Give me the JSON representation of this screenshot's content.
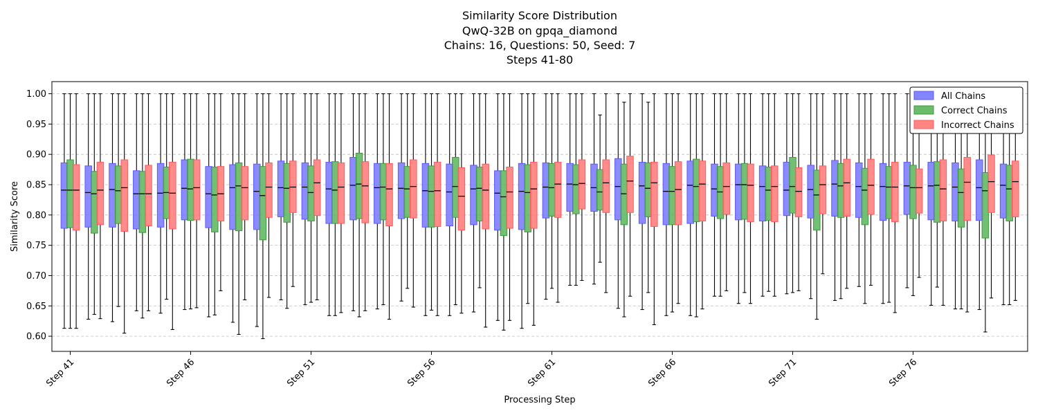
{
  "chart_data": {
    "type": "box",
    "title_lines": [
      "Similarity Score Distribution",
      "QwQ-32B on gpqa_diamond",
      "Chains: 16, Questions: 50, Seed: 7",
      "Steps 41-80"
    ],
    "xlabel": "Processing Step",
    "ylabel": "Similarity Score",
    "ylim": [
      0.575,
      1.02
    ],
    "yticks": [
      0.6,
      0.65,
      0.7,
      0.75,
      0.8,
      0.85,
      0.9,
      0.95,
      1.0
    ],
    "ytick_labels": [
      "0.60",
      "0.65",
      "0.70",
      "0.75",
      "0.80",
      "0.85",
      "0.90",
      "0.95",
      "1.00"
    ],
    "grid": "y-dashed",
    "legend_position": "top-right",
    "steps": [
      41,
      42,
      43,
      44,
      45,
      46,
      47,
      48,
      49,
      50,
      51,
      52,
      53,
      54,
      55,
      56,
      57,
      58,
      59,
      60,
      61,
      62,
      63,
      64,
      65,
      66,
      67,
      68,
      69,
      70,
      71,
      72,
      73,
      74,
      75,
      76,
      77,
      78,
      79,
      80
    ],
    "xtick_steps": [
      41,
      46,
      51,
      56,
      61,
      66,
      71,
      76
    ],
    "xtick_labels": [
      "Step 41",
      "Step 46",
      "Step 51",
      "Step 56",
      "Step 61",
      "Step 66",
      "Step 71",
      "Step 76"
    ],
    "series": [
      {
        "name": "All Chains",
        "color": "#5a5aff",
        "fill": "#7777ff",
        "boxes": [
          [
            0.613,
            0.778,
            0.841,
            0.886,
            1.0
          ],
          [
            0.628,
            0.78,
            0.837,
            0.881,
            1.0
          ],
          [
            0.624,
            0.78,
            0.842,
            0.885,
            1.0
          ],
          [
            0.642,
            0.777,
            0.835,
            0.873,
            1.0
          ],
          [
            0.638,
            0.78,
            0.836,
            0.885,
            1.0
          ],
          [
            0.644,
            0.792,
            0.844,
            0.891,
            1.0
          ],
          [
            0.632,
            0.779,
            0.835,
            0.88,
            1.0
          ],
          [
            0.623,
            0.776,
            0.845,
            0.883,
            1.0
          ],
          [
            0.616,
            0.776,
            0.839,
            0.884,
            1.0
          ],
          [
            0.66,
            0.797,
            0.845,
            0.889,
            1.0
          ],
          [
            0.652,
            0.793,
            0.846,
            0.886,
            1.0
          ],
          [
            0.634,
            0.786,
            0.843,
            0.887,
            1.0
          ],
          [
            0.642,
            0.792,
            0.849,
            0.895,
            1.0
          ],
          [
            0.645,
            0.786,
            0.845,
            0.885,
            1.0
          ],
          [
            0.658,
            0.794,
            0.844,
            0.886,
            1.0
          ],
          [
            0.634,
            0.78,
            0.84,
            0.885,
            1.0
          ],
          [
            0.634,
            0.782,
            0.838,
            0.884,
            1.0
          ],
          [
            0.64,
            0.784,
            0.843,
            0.882,
            1.0
          ],
          [
            0.626,
            0.775,
            0.836,
            0.873,
            1.0
          ],
          [
            0.613,
            0.776,
            0.839,
            0.885,
            1.0
          ],
          [
            0.661,
            0.795,
            0.846,
            0.886,
            1.0
          ],
          [
            0.684,
            0.806,
            0.851,
            0.885,
            1.0
          ],
          [
            0.686,
            0.806,
            0.845,
            0.884,
            1.0
          ],
          [
            0.646,
            0.792,
            0.847,
            0.893,
            1.0
          ],
          [
            0.644,
            0.786,
            0.848,
            0.887,
            1.0
          ],
          [
            0.634,
            0.784,
            0.839,
            0.885,
            1.0
          ],
          [
            0.634,
            0.786,
            0.849,
            0.889,
            1.0
          ],
          [
            0.666,
            0.798,
            0.843,
            0.884,
            1.0
          ],
          [
            0.654,
            0.792,
            0.85,
            0.884,
            1.0
          ],
          [
            0.666,
            0.79,
            0.847,
            0.881,
            1.0
          ],
          [
            0.67,
            0.799,
            0.841,
            0.887,
            1.0
          ],
          [
            0.662,
            0.795,
            0.842,
            0.882,
            1.0
          ],
          [
            0.659,
            0.798,
            0.851,
            0.89,
            1.0
          ],
          [
            0.682,
            0.796,
            0.847,
            0.886,
            1.0
          ],
          [
            0.654,
            0.791,
            0.847,
            0.885,
            1.0
          ],
          [
            0.68,
            0.801,
            0.848,
            0.887,
            1.0
          ],
          [
            0.651,
            0.792,
            0.848,
            0.887,
            1.0
          ],
          [
            0.645,
            0.79,
            0.846,
            0.886,
            1.0
          ],
          [
            0.644,
            0.791,
            0.845,
            0.891,
            1.0
          ],
          [
            0.652,
            0.795,
            0.849,
            0.884,
            1.0
          ]
        ]
      },
      {
        "name": "Correct Chains",
        "color": "#3d9a3d",
        "fill": "#5ab45a",
        "boxes": [
          [
            0.613,
            0.779,
            0.841,
            0.891,
            1.0
          ],
          [
            0.636,
            0.77,
            0.835,
            0.872,
            1.0
          ],
          [
            0.649,
            0.786,
            0.84,
            0.881,
            1.0
          ],
          [
            0.63,
            0.771,
            0.835,
            0.872,
            1.0
          ],
          [
            0.661,
            0.794,
            0.837,
            0.879,
            1.0
          ],
          [
            0.645,
            0.791,
            0.843,
            0.892,
            1.0
          ],
          [
            0.635,
            0.772,
            0.833,
            0.879,
            1.0
          ],
          [
            0.603,
            0.774,
            0.848,
            0.886,
            1.0
          ],
          [
            0.596,
            0.759,
            0.832,
            0.88,
            1.0
          ],
          [
            0.646,
            0.788,
            0.844,
            0.885,
            1.0
          ],
          [
            0.656,
            0.79,
            0.837,
            0.881,
            1.0
          ],
          [
            0.634,
            0.786,
            0.841,
            0.888,
            1.0
          ],
          [
            0.632,
            0.794,
            0.851,
            0.902,
            1.0
          ],
          [
            0.652,
            0.792,
            0.846,
            0.885,
            1.0
          ],
          [
            0.679,
            0.796,
            0.843,
            0.88,
            1.0
          ],
          [
            0.643,
            0.78,
            0.839,
            0.881,
            1.0
          ],
          [
            0.652,
            0.796,
            0.847,
            0.895,
            1.0
          ],
          [
            0.68,
            0.79,
            0.844,
            0.879,
            1.0
          ],
          [
            0.61,
            0.766,
            0.83,
            0.873,
            1.0
          ],
          [
            0.654,
            0.772,
            0.837,
            0.883,
            1.0
          ],
          [
            0.679,
            0.798,
            0.845,
            0.885,
            1.0
          ],
          [
            0.684,
            0.802,
            0.85,
            0.883,
            1.0
          ],
          [
            0.722,
            0.808,
            0.838,
            0.875,
            0.965
          ],
          [
            0.632,
            0.784,
            0.835,
            0.884,
            0.986
          ],
          [
            0.672,
            0.797,
            0.844,
            0.886,
            0.986
          ],
          [
            0.64,
            0.784,
            0.839,
            0.88,
            1.0
          ],
          [
            0.632,
            0.789,
            0.847,
            0.892,
            1.0
          ],
          [
            0.666,
            0.794,
            0.838,
            0.88,
            1.0
          ],
          [
            0.672,
            0.793,
            0.85,
            0.885,
            1.0
          ],
          [
            0.674,
            0.791,
            0.841,
            0.879,
            1.0
          ],
          [
            0.672,
            0.803,
            0.847,
            0.895,
            1.0
          ],
          [
            0.628,
            0.775,
            0.833,
            0.874,
            1.0
          ],
          [
            0.662,
            0.796,
            0.848,
            0.885,
            1.0
          ],
          [
            0.654,
            0.784,
            0.841,
            0.877,
            1.0
          ],
          [
            0.656,
            0.794,
            0.846,
            0.88,
            1.0
          ],
          [
            0.667,
            0.794,
            0.845,
            0.882,
            1.0
          ],
          [
            0.681,
            0.788,
            0.849,
            0.888,
            1.0
          ],
          [
            0.645,
            0.78,
            0.837,
            0.876,
            1.0
          ],
          [
            0.607,
            0.762,
            0.84,
            0.87,
            1.0
          ],
          [
            0.652,
            0.79,
            0.843,
            0.882,
            1.0
          ]
        ]
      },
      {
        "name": "Incorrect Chains",
        "color": "#ff5a5a",
        "fill": "#ff7777",
        "boxes": [
          [
            0.613,
            0.775,
            0.841,
            0.883,
            1.0
          ],
          [
            0.629,
            0.784,
            0.841,
            0.887,
            1.0
          ],
          [
            0.605,
            0.773,
            0.845,
            0.891,
            1.0
          ],
          [
            0.642,
            0.782,
            0.835,
            0.882,
            1.0
          ],
          [
            0.611,
            0.777,
            0.836,
            0.887,
            1.0
          ],
          [
            0.647,
            0.792,
            0.845,
            0.891,
            1.0
          ],
          [
            0.675,
            0.79,
            0.835,
            0.88,
            1.0
          ],
          [
            0.66,
            0.792,
            0.845,
            0.88,
            1.0
          ],
          [
            0.664,
            0.796,
            0.846,
            0.886,
            1.0
          ],
          [
            0.682,
            0.804,
            0.846,
            0.889,
            1.0
          ],
          [
            0.66,
            0.799,
            0.853,
            0.891,
            1.0
          ],
          [
            0.639,
            0.786,
            0.846,
            0.886,
            1.0
          ],
          [
            0.642,
            0.787,
            0.848,
            0.888,
            1.0
          ],
          [
            0.628,
            0.782,
            0.843,
            0.885,
            1.0
          ],
          [
            0.648,
            0.795,
            0.847,
            0.891,
            1.0
          ],
          [
            0.634,
            0.781,
            0.84,
            0.887,
            1.0
          ],
          [
            0.638,
            0.775,
            0.831,
            0.878,
            1.0
          ],
          [
            0.615,
            0.777,
            0.841,
            0.884,
            1.0
          ],
          [
            0.626,
            0.778,
            0.838,
            0.879,
            1.0
          ],
          [
            0.618,
            0.778,
            0.843,
            0.887,
            1.0
          ],
          [
            0.656,
            0.796,
            0.851,
            0.887,
            1.0
          ],
          [
            0.692,
            0.81,
            0.852,
            0.891,
            1.0
          ],
          [
            0.672,
            0.804,
            0.853,
            0.891,
            1.0
          ],
          [
            0.666,
            0.804,
            0.856,
            0.897,
            1.0
          ],
          [
            0.619,
            0.781,
            0.853,
            0.887,
            1.0
          ],
          [
            0.654,
            0.784,
            0.842,
            0.888,
            1.0
          ],
          [
            0.645,
            0.79,
            0.851,
            0.889,
            1.0
          ],
          [
            0.675,
            0.801,
            0.847,
            0.886,
            1.0
          ],
          [
            0.654,
            0.789,
            0.849,
            0.884,
            1.0
          ],
          [
            0.666,
            0.789,
            0.847,
            0.881,
            1.0
          ],
          [
            0.675,
            0.797,
            0.839,
            0.878,
            1.0
          ],
          [
            0.703,
            0.802,
            0.85,
            0.881,
            1.0
          ],
          [
            0.679,
            0.798,
            0.853,
            0.892,
            1.0
          ],
          [
            0.684,
            0.801,
            0.849,
            0.892,
            1.0
          ],
          [
            0.639,
            0.789,
            0.846,
            0.887,
            1.0
          ],
          [
            0.697,
            0.803,
            0.845,
            0.876,
            1.0
          ],
          [
            0.651,
            0.79,
            0.843,
            0.891,
            1.0
          ],
          [
            0.64,
            0.791,
            0.854,
            0.895,
            1.0
          ],
          [
            0.663,
            0.804,
            0.855,
            0.899,
            1.0
          ],
          [
            0.659,
            0.797,
            0.855,
            0.889,
            1.0
          ]
        ]
      }
    ]
  }
}
